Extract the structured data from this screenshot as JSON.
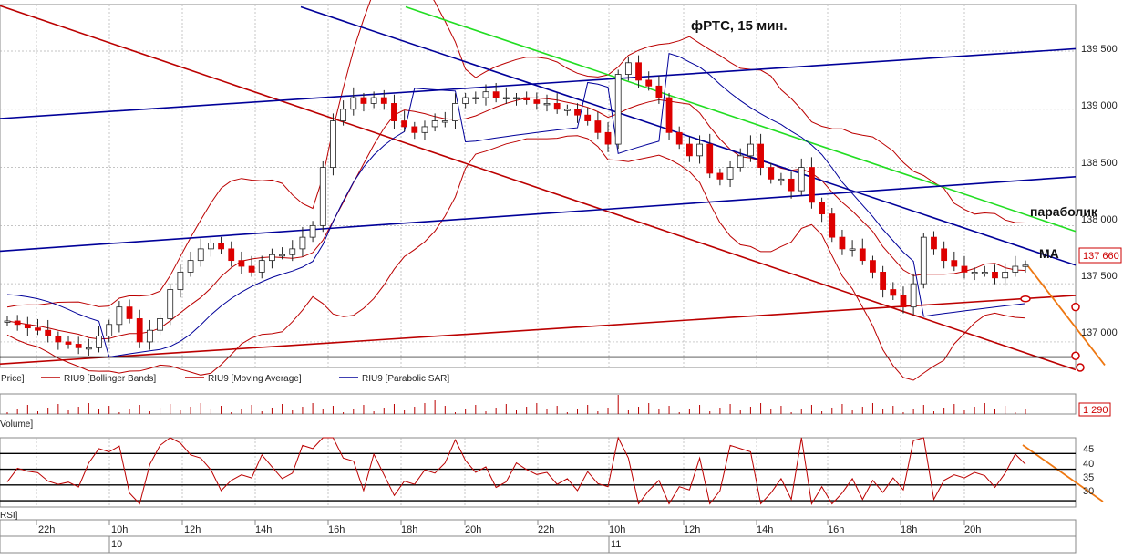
{
  "title": "фРТС,  15 мин.",
  "annotations": {
    "parabolic": "параболик",
    "ma": "МА"
  },
  "price_axis": {
    "ticks": [
      "139 500",
      "139 000",
      "138 500",
      "138 000",
      "137 500",
      "137 000"
    ],
    "current_price": "137 660"
  },
  "legend": [
    "Price]",
    "RIU9 [Bollinger Bands]",
    "RIU9 [Moving Average]",
    "RIU9 [Parabolic SAR]"
  ],
  "volume_panel": {
    "label": "Volume]",
    "value_box": "1 290"
  },
  "rsi_panel": {
    "label": "RSI]",
    "ticks": [
      "45",
      "40",
      "35",
      "30"
    ]
  },
  "time_axis": {
    "hours": [
      "22h",
      "10h",
      "12h",
      "14h",
      "16h",
      "18h",
      "20h",
      "22h",
      "10h",
      "12h",
      "14h",
      "16h",
      "18h",
      "20h"
    ],
    "days": [
      "10",
      "11"
    ]
  },
  "colors": {
    "bull": "#ffffff",
    "bear": "#dd0000",
    "sar": "#000099",
    "trend_red": "#bb0000",
    "trend_blue": "#000099",
    "trend_green": "#22dd22",
    "arrow": "#ee7711",
    "grid": "#b0b0b0"
  },
  "chart_data": {
    "type": "candlestick",
    "title": "фРТС,  15 мин.",
    "timeframe": "15 min",
    "ylim": [
      136780,
      139900
    ],
    "series": [
      {
        "name": "RIU9 [Bollinger Bands]"
      },
      {
        "name": "RIU9 [Moving Average]"
      },
      {
        "name": "RIU9 [Parabolic SAR]"
      }
    ],
    "close_path_approx": [
      137180,
      137150,
      137120,
      137100,
      137050,
      137000,
      136980,
      136950,
      136950,
      137050,
      137150,
      137300,
      137200,
      137000,
      137100,
      137200,
      137450,
      137600,
      137700,
      137800,
      137850,
      137800,
      137700,
      137650,
      137600,
      137700,
      137750,
      137750,
      137800,
      137900,
      138000,
      138500,
      138900,
      139000,
      139100,
      139050,
      139100,
      139050,
      138900,
      138850,
      138800,
      138850,
      138900,
      138900,
      139050,
      139100,
      139100,
      139150,
      139100,
      139100,
      139100,
      139080,
      139050,
      139050,
      139000,
      139000,
      138950,
      138900,
      138800,
      138700,
      139300,
      139400,
      139250,
      139200,
      139100,
      138800,
      138700,
      138600,
      138700,
      138450,
      138400,
      138500,
      138600,
      138700,
      138500,
      138400,
      138400,
      138300,
      138500,
      138200,
      138100,
      137900,
      137800,
      137800,
      137700,
      137600,
      137450,
      137400,
      137300,
      137500,
      137900,
      137800,
      137700,
      137650,
      137600,
      137600,
      137600,
      137550,
      137600,
      137650,
      137660
    ],
    "volume_last": 1290,
    "current_price": 137660
  }
}
